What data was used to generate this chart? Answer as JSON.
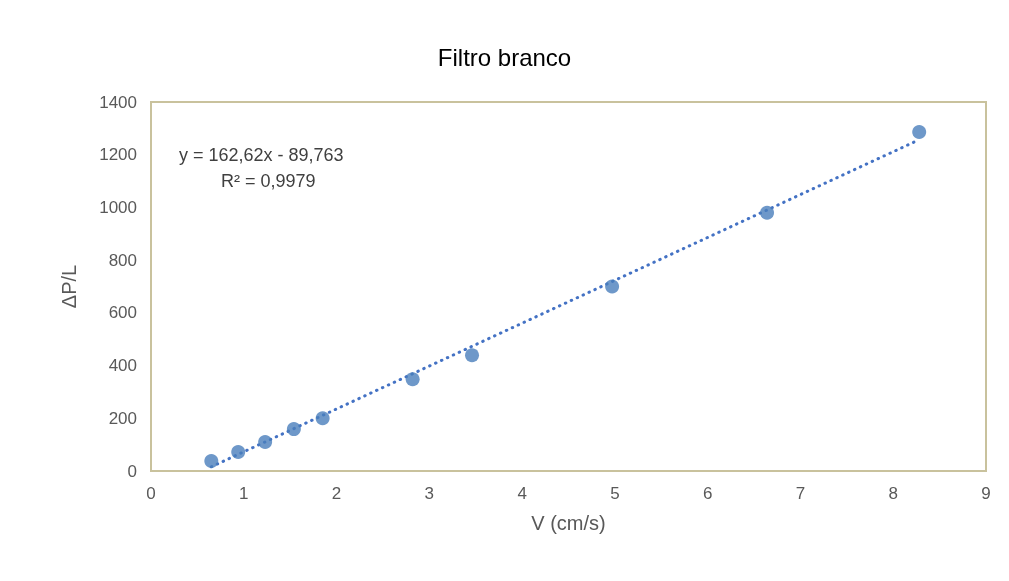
{
  "chart_data": {
    "type": "scatter",
    "title": "Filtro branco",
    "xlabel": "V (cm/s)",
    "ylabel": "ΔP/L",
    "annotations": [
      "y = 162,62x - 89,763",
      "R² = 0,9979"
    ],
    "xlim": [
      0,
      9
    ],
    "xticks": [
      0,
      1,
      2,
      3,
      4,
      5,
      6,
      7,
      8,
      9
    ],
    "ylim": [
      0,
      1400
    ],
    "yticks": [
      0,
      200,
      400,
      600,
      800,
      1000,
      1200,
      1400
    ],
    "grid": false,
    "marker": "circle",
    "series": [
      {
        "color": "#4a7ebb",
        "x": [
          0.65,
          0.94,
          1.23,
          1.54,
          1.85,
          2.82,
          3.46,
          4.97,
          6.64,
          8.28
        ],
        "values": [
          38,
          72,
          110,
          159,
          200,
          348,
          439,
          700,
          980,
          1286
        ]
      },
      {
        "type": "line",
        "color": "#4472c4",
        "line_style": "dotted",
        "marker": "none",
        "x": [
          0.65,
          8.28
        ],
        "values": [
          16,
          1257
        ]
      }
    ]
  }
}
